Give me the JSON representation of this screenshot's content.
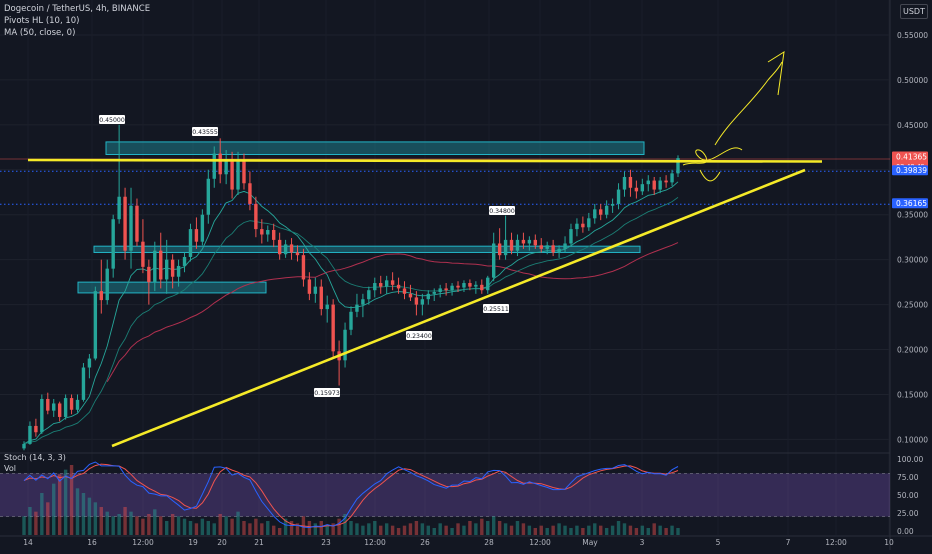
{
  "header": {
    "symbol_line": "Dogecoin / TetherUS, 4h, BINANCE",
    "indicator_1": "Pivots HL (10, 10)",
    "indicator_2": "MA (50, close, 0)",
    "currency_button": "USDT"
  },
  "sub_panel": {
    "stoch_label": "Stoch (14, 3, 3)",
    "vol_label": "Vol"
  },
  "colors": {
    "background": "#131722",
    "up_candle": "#26a69a",
    "down_candle": "#ef5350",
    "trendline": "#f5ea28",
    "zone": "#22b5c6",
    "ma50": "#b0304f",
    "dotted_level": "#2962ff",
    "stoch_k": "#2962ff",
    "stoch_d": "#ef5350",
    "stoch_band": "#7e57c2",
    "axis_text": "#b2b5be"
  },
  "chart_data": {
    "type": "candlestick",
    "timeframe": "4h",
    "price_axis": {
      "ticks": [
        "0.55000",
        "0.50000",
        "0.45000",
        "0.40000",
        "0.35000",
        "0.30000",
        "0.25000",
        "0.20000",
        "0.15000",
        "0.10000"
      ],
      "ylim": [
        0.086,
        0.58
      ]
    },
    "time_axis": {
      "ticks": [
        "14",
        "16",
        "12:00",
        "19",
        "20",
        "21",
        "23",
        "12:00",
        "26",
        "28",
        "12:00",
        "May",
        "3",
        "5",
        "7",
        "12:00",
        "10"
      ]
    },
    "candles": [
      [
        0.09,
        0.098,
        0.088,
        0.095
      ],
      [
        0.095,
        0.12,
        0.094,
        0.115
      ],
      [
        0.115,
        0.123,
        0.103,
        0.108
      ],
      [
        0.108,
        0.15,
        0.106,
        0.145
      ],
      [
        0.145,
        0.152,
        0.128,
        0.132
      ],
      [
        0.132,
        0.145,
        0.125,
        0.14
      ],
      [
        0.14,
        0.142,
        0.12,
        0.125
      ],
      [
        0.125,
        0.15,
        0.122,
        0.146
      ],
      [
        0.146,
        0.15,
        0.128,
        0.133
      ],
      [
        0.133,
        0.15,
        0.13,
        0.144
      ],
      [
        0.144,
        0.185,
        0.142,
        0.18
      ],
      [
        0.18,
        0.195,
        0.168,
        0.19
      ],
      [
        0.19,
        0.27,
        0.188,
        0.265
      ],
      [
        0.265,
        0.3,
        0.24,
        0.255
      ],
      [
        0.255,
        0.3,
        0.25,
        0.29
      ],
      [
        0.29,
        0.35,
        0.28,
        0.345
      ],
      [
        0.345,
        0.45,
        0.34,
        0.37
      ],
      [
        0.37,
        0.38,
        0.3,
        0.31
      ],
      [
        0.31,
        0.38,
        0.29,
        0.36
      ],
      [
        0.36,
        0.368,
        0.315,
        0.32
      ],
      [
        0.32,
        0.345,
        0.285,
        0.292
      ],
      [
        0.292,
        0.3,
        0.25,
        0.275
      ],
      [
        0.275,
        0.32,
        0.265,
        0.31
      ],
      [
        0.31,
        0.33,
        0.268,
        0.278
      ],
      [
        0.278,
        0.322,
        0.262,
        0.3
      ],
      [
        0.3,
        0.306,
        0.268,
        0.281
      ],
      [
        0.281,
        0.3,
        0.27,
        0.293
      ],
      [
        0.293,
        0.308,
        0.286,
        0.303
      ],
      [
        0.303,
        0.34,
        0.298,
        0.334
      ],
      [
        0.334,
        0.347,
        0.312,
        0.32
      ],
      [
        0.32,
        0.356,
        0.316,
        0.35
      ],
      [
        0.35,
        0.4,
        0.34,
        0.39
      ],
      [
        0.39,
        0.426,
        0.38,
        0.418
      ],
      [
        0.418,
        0.435,
        0.385,
        0.395
      ],
      [
        0.395,
        0.422,
        0.384,
        0.412
      ],
      [
        0.412,
        0.42,
        0.368,
        0.378
      ],
      [
        0.378,
        0.42,
        0.372,
        0.41
      ],
      [
        0.41,
        0.418,
        0.378,
        0.385
      ],
      [
        0.385,
        0.398,
        0.355,
        0.362
      ],
      [
        0.362,
        0.37,
        0.325,
        0.334
      ],
      [
        0.334,
        0.345,
        0.318,
        0.328
      ],
      [
        0.328,
        0.338,
        0.32,
        0.333
      ],
      [
        0.333,
        0.34,
        0.314,
        0.322
      ],
      [
        0.322,
        0.33,
        0.3,
        0.306
      ],
      [
        0.306,
        0.322,
        0.302,
        0.317
      ],
      [
        0.317,
        0.324,
        0.3,
        0.308
      ],
      [
        0.308,
        0.316,
        0.298,
        0.305
      ],
      [
        0.305,
        0.312,
        0.27,
        0.278
      ],
      [
        0.278,
        0.286,
        0.255,
        0.262
      ],
      [
        0.262,
        0.28,
        0.252,
        0.27
      ],
      [
        0.27,
        0.278,
        0.238,
        0.245
      ],
      [
        0.245,
        0.26,
        0.23,
        0.25
      ],
      [
        0.25,
        0.256,
        0.19,
        0.198
      ],
      [
        0.198,
        0.21,
        0.16,
        0.188
      ],
      [
        0.188,
        0.23,
        0.18,
        0.222
      ],
      [
        0.222,
        0.248,
        0.216,
        0.242
      ],
      [
        0.242,
        0.262,
        0.236,
        0.25
      ],
      [
        0.25,
        0.262,
        0.236,
        0.256
      ],
      [
        0.256,
        0.27,
        0.25,
        0.266
      ],
      [
        0.266,
        0.28,
        0.258,
        0.274
      ],
      [
        0.274,
        0.282,
        0.262,
        0.27
      ],
      [
        0.27,
        0.282,
        0.262,
        0.277
      ],
      [
        0.277,
        0.286,
        0.266,
        0.272
      ],
      [
        0.272,
        0.28,
        0.262,
        0.268
      ],
      [
        0.268,
        0.276,
        0.256,
        0.262
      ],
      [
        0.262,
        0.272,
        0.254,
        0.258
      ],
      [
        0.258,
        0.265,
        0.238,
        0.25
      ],
      [
        0.25,
        0.262,
        0.238,
        0.256
      ],
      [
        0.256,
        0.266,
        0.25,
        0.262
      ],
      [
        0.262,
        0.268,
        0.254,
        0.264
      ],
      [
        0.264,
        0.272,
        0.258,
        0.268
      ],
      [
        0.268,
        0.274,
        0.26,
        0.266
      ],
      [
        0.266,
        0.274,
        0.26,
        0.271
      ],
      [
        0.271,
        0.276,
        0.264,
        0.269
      ],
      [
        0.269,
        0.277,
        0.264,
        0.274
      ],
      [
        0.274,
        0.278,
        0.266,
        0.27
      ],
      [
        0.27,
        0.276,
        0.262,
        0.272
      ],
      [
        0.272,
        0.278,
        0.262,
        0.266
      ],
      [
        0.266,
        0.282,
        0.262,
        0.28
      ],
      [
        0.28,
        0.33,
        0.276,
        0.318
      ],
      [
        0.318,
        0.335,
        0.3,
        0.305
      ],
      [
        0.305,
        0.349,
        0.3,
        0.322
      ],
      [
        0.322,
        0.33,
        0.306,
        0.31
      ],
      [
        0.31,
        0.328,
        0.304,
        0.322
      ],
      [
        0.322,
        0.33,
        0.312,
        0.318
      ],
      [
        0.318,
        0.326,
        0.31,
        0.322
      ],
      [
        0.322,
        0.328,
        0.312,
        0.316
      ],
      [
        0.316,
        0.324,
        0.308,
        0.312
      ],
      [
        0.312,
        0.32,
        0.306,
        0.316
      ],
      [
        0.316,
        0.322,
        0.304,
        0.308
      ],
      [
        0.308,
        0.316,
        0.302,
        0.312
      ],
      [
        0.312,
        0.326,
        0.308,
        0.318
      ],
      [
        0.318,
        0.34,
        0.314,
        0.334
      ],
      [
        0.334,
        0.346,
        0.326,
        0.34
      ],
      [
        0.34,
        0.348,
        0.33,
        0.336
      ],
      [
        0.336,
        0.352,
        0.332,
        0.346
      ],
      [
        0.346,
        0.362,
        0.34,
        0.356
      ],
      [
        0.356,
        0.362,
        0.344,
        0.35
      ],
      [
        0.35,
        0.366,
        0.346,
        0.36
      ],
      [
        0.36,
        0.368,
        0.352,
        0.362
      ],
      [
        0.362,
        0.385,
        0.356,
        0.378
      ],
      [
        0.378,
        0.398,
        0.37,
        0.392
      ],
      [
        0.392,
        0.4,
        0.37,
        0.38
      ],
      [
        0.38,
        0.388,
        0.368,
        0.376
      ],
      [
        0.376,
        0.39,
        0.372,
        0.384
      ],
      [
        0.384,
        0.394,
        0.376,
        0.388
      ],
      [
        0.388,
        0.392,
        0.372,
        0.378
      ],
      [
        0.378,
        0.392,
        0.374,
        0.388
      ],
      [
        0.388,
        0.394,
        0.38,
        0.386
      ],
      [
        0.386,
        0.4,
        0.382,
        0.396
      ],
      [
        0.396,
        0.416,
        0.392,
        0.413
      ]
    ],
    "zones": [
      {
        "top": 0.431,
        "bottom": 0.417
      },
      {
        "top": 0.315,
        "bottom": 0.308
      },
      {
        "top": 0.275,
        "bottom": 0.263
      }
    ],
    "horizontal_lines": [
      {
        "type": "solid",
        "value": 0.412
      },
      {
        "type": "dotted",
        "value": 0.3984
      },
      {
        "type": "dotted",
        "value": 0.3617
      }
    ],
    "price_badges": [
      {
        "value": "0.41365",
        "sub": "03 49 45"
      },
      {
        "value": "0.39839"
      },
      {
        "value": "0.36165"
      }
    ],
    "pivot_labels": [
      "0.45000",
      "0.43555",
      "0.34800",
      "0.25511",
      "0.23400",
      "0.15973"
    ],
    "volume": [
      8,
      12,
      10,
      18,
      14,
      22,
      26,
      28,
      30,
      20,
      18,
      16,
      14,
      12,
      10,
      8,
      9,
      12,
      10,
      8,
      7,
      9,
      11,
      8,
      6,
      9,
      8,
      7,
      6,
      5,
      7,
      6,
      5,
      9,
      8,
      7,
      10,
      6,
      5,
      7,
      5,
      6,
      4,
      3,
      7,
      6,
      5,
      8,
      6,
      5,
      6,
      4,
      5,
      7,
      9,
      6,
      5,
      4,
      5,
      6,
      4,
      5,
      4,
      3,
      4,
      5,
      6,
      5,
      4,
      3,
      5,
      4,
      3,
      5,
      4,
      6,
      5,
      7,
      6,
      8,
      6,
      5,
      4,
      6,
      5,
      4,
      3,
      4,
      3,
      4,
      5,
      4,
      3,
      4,
      3,
      4,
      5,
      4,
      3,
      4,
      6,
      5,
      4,
      3,
      4,
      3,
      5,
      4,
      3,
      4,
      3
    ],
    "stoch_axis": [
      "100.00",
      "75.00",
      "50.00",
      "25.00",
      "0.00"
    ]
  }
}
